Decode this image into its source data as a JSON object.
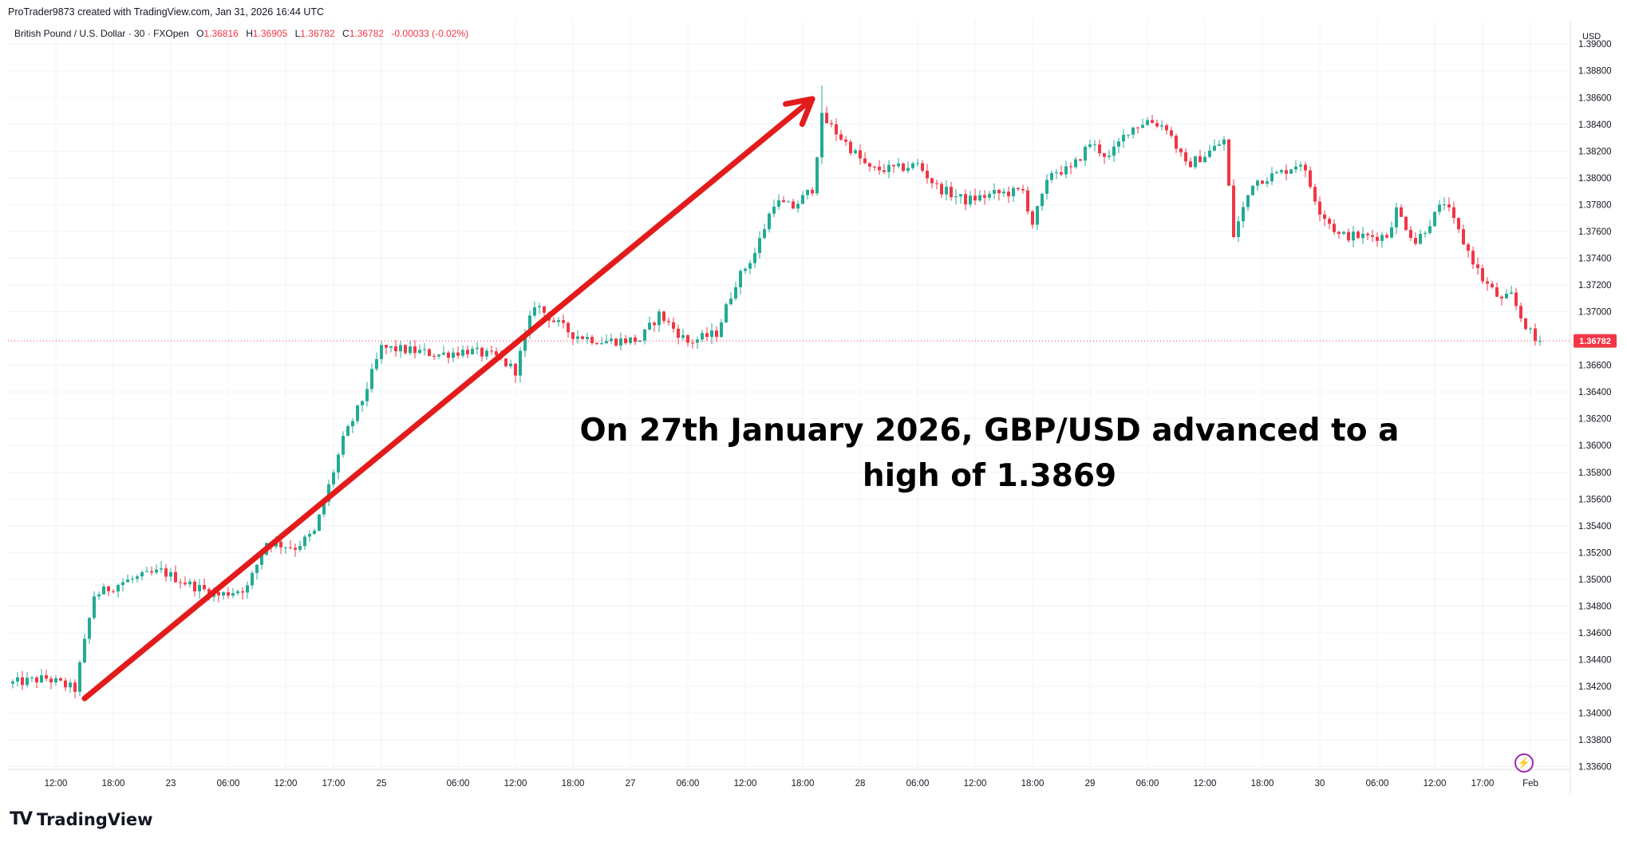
{
  "header": {
    "attribution": "ProTrader9873 created with TradingView.com, Jan 31, 2026 16:44 UTC"
  },
  "legend": {
    "symbol": "British Pound / U.S. Dollar · 30 · FXOpen",
    "open_label": "O",
    "open": "1.36816",
    "high_label": "H",
    "high": "1.36905",
    "low_label": "L",
    "low": "1.36782",
    "close_label": "C",
    "close": "1.36782",
    "change": "-0.00033 (-0.02%)"
  },
  "annotation": {
    "line1": "On 27th January 2026, GBP/USD advanced to a",
    "line2": "high of 1.3869"
  },
  "branding": {
    "logo": "TV",
    "text": "TradingView"
  },
  "icons": {
    "bolt": "lightning-icon"
  },
  "colors": {
    "up": "#22ab94",
    "down": "#f23645",
    "arrow": "#e31b1b",
    "grid": "#f0f3fa"
  },
  "chart_data": {
    "type": "candlestick",
    "symbol": "GBP/USD",
    "timeframe": "30",
    "currency_label": "USD",
    "last_price": "1.36782",
    "ylim": [
      1.3358,
      1.3918
    ],
    "y_ticks": [
      "1.39000",
      "1.38800",
      "1.38600",
      "1.38400",
      "1.38200",
      "1.38000",
      "1.37800",
      "1.37600",
      "1.37400",
      "1.37200",
      "1.37000",
      "1.36600",
      "1.36400",
      "1.36200",
      "1.36000",
      "1.35800",
      "1.35600",
      "1.35400",
      "1.35200",
      "1.35000",
      "1.34800",
      "1.34600",
      "1.34400",
      "1.34200",
      "1.34000",
      "1.33800",
      "1.33600"
    ],
    "x_ticks": [
      {
        "label": "12:00",
        "index": 9
      },
      {
        "label": "18:00",
        "index": 21
      },
      {
        "label": "23",
        "index": 33
      },
      {
        "label": "06:00",
        "index": 45
      },
      {
        "label": "12:00",
        "index": 57
      },
      {
        "label": "17:00",
        "index": 67
      },
      {
        "label": "25",
        "index": 77
      },
      {
        "label": "06:00",
        "index": 93
      },
      {
        "label": "12:00",
        "index": 105
      },
      {
        "label": "18:00",
        "index": 117
      },
      {
        "label": "27",
        "index": 129
      },
      {
        "label": "06:00",
        "index": 141
      },
      {
        "label": "12:00",
        "index": 153
      },
      {
        "label": "18:00",
        "index": 165
      },
      {
        "label": "28",
        "index": 177
      },
      {
        "label": "06:00",
        "index": 189
      },
      {
        "label": "12:00",
        "index": 201
      },
      {
        "label": "18:00",
        "index": 213
      },
      {
        "label": "29",
        "index": 225
      },
      {
        "label": "06:00",
        "index": 237
      },
      {
        "label": "12:00",
        "index": 249
      },
      {
        "label": "18:00",
        "index": 261
      },
      {
        "label": "30",
        "index": 273
      },
      {
        "label": "06:00",
        "index": 285
      },
      {
        "label": "12:00",
        "index": 297
      },
      {
        "label": "17:00",
        "index": 307
      },
      {
        "label": "Feb",
        "index": 317
      }
    ],
    "path": [
      [
        0,
        1.3422
      ],
      [
        8,
        1.3426
      ],
      [
        14,
        1.3418
      ],
      [
        18,
        1.3488
      ],
      [
        24,
        1.3498
      ],
      [
        32,
        1.3506
      ],
      [
        38,
        1.3496
      ],
      [
        44,
        1.3488
      ],
      [
        50,
        1.3494
      ],
      [
        54,
        1.3528
      ],
      [
        60,
        1.3524
      ],
      [
        64,
        1.3535
      ],
      [
        70,
        1.3604
      ],
      [
        74,
        1.3634
      ],
      [
        78,
        1.3673
      ],
      [
        84,
        1.3671
      ],
      [
        90,
        1.3668
      ],
      [
        96,
        1.3671
      ],
      [
        102,
        1.3666
      ],
      [
        106,
        1.3656
      ],
      [
        110,
        1.3706
      ],
      [
        114,
        1.3693
      ],
      [
        118,
        1.3683
      ],
      [
        124,
        1.3678
      ],
      [
        132,
        1.3679
      ],
      [
        136,
        1.3698
      ],
      [
        142,
        1.3677
      ],
      [
        148,
        1.3684
      ],
      [
        152,
        1.3722
      ],
      [
        156,
        1.3744
      ],
      [
        160,
        1.3782
      ],
      [
        164,
        1.3778
      ],
      [
        168,
        1.3792
      ],
      [
        170,
        1.3845
      ],
      [
        172,
        1.3838
      ],
      [
        176,
        1.3822
      ],
      [
        180,
        1.3806
      ],
      [
        186,
        1.3807
      ],
      [
        190,
        1.381
      ],
      [
        194,
        1.3793
      ],
      [
        200,
        1.3783
      ],
      [
        206,
        1.3788
      ],
      [
        212,
        1.379
      ],
      [
        214,
        1.3766
      ],
      [
        218,
        1.3805
      ],
      [
        222,
        1.3806
      ],
      [
        226,
        1.3826
      ],
      [
        230,
        1.3815
      ],
      [
        234,
        1.3836
      ],
      [
        238,
        1.3843
      ],
      [
        242,
        1.3838
      ],
      [
        246,
        1.3809
      ],
      [
        250,
        1.3817
      ],
      [
        254,
        1.3828
      ],
      [
        256,
        1.3757
      ],
      [
        260,
        1.3797
      ],
      [
        266,
        1.3804
      ],
      [
        270,
        1.3812
      ],
      [
        274,
        1.3776
      ],
      [
        278,
        1.3757
      ],
      [
        284,
        1.3756
      ],
      [
        288,
        1.3757
      ],
      [
        290,
        1.3776
      ],
      [
        294,
        1.3752
      ],
      [
        298,
        1.3772
      ],
      [
        300,
        1.3782
      ],
      [
        304,
        1.3752
      ],
      [
        308,
        1.3724
      ],
      [
        312,
        1.3708
      ],
      [
        314,
        1.3712
      ],
      [
        316,
        1.3696
      ],
      [
        319,
        1.3678
      ]
    ],
    "candle_count": 320,
    "period_high": 1.3869,
    "arrow": {
      "from": [
        15,
        1.3411
      ],
      "to": [
        167,
        1.3859
      ]
    },
    "annotation_text": [
      "On 27th January 2026, GBP/USD advanced to a",
      "high of 1.3869"
    ]
  }
}
